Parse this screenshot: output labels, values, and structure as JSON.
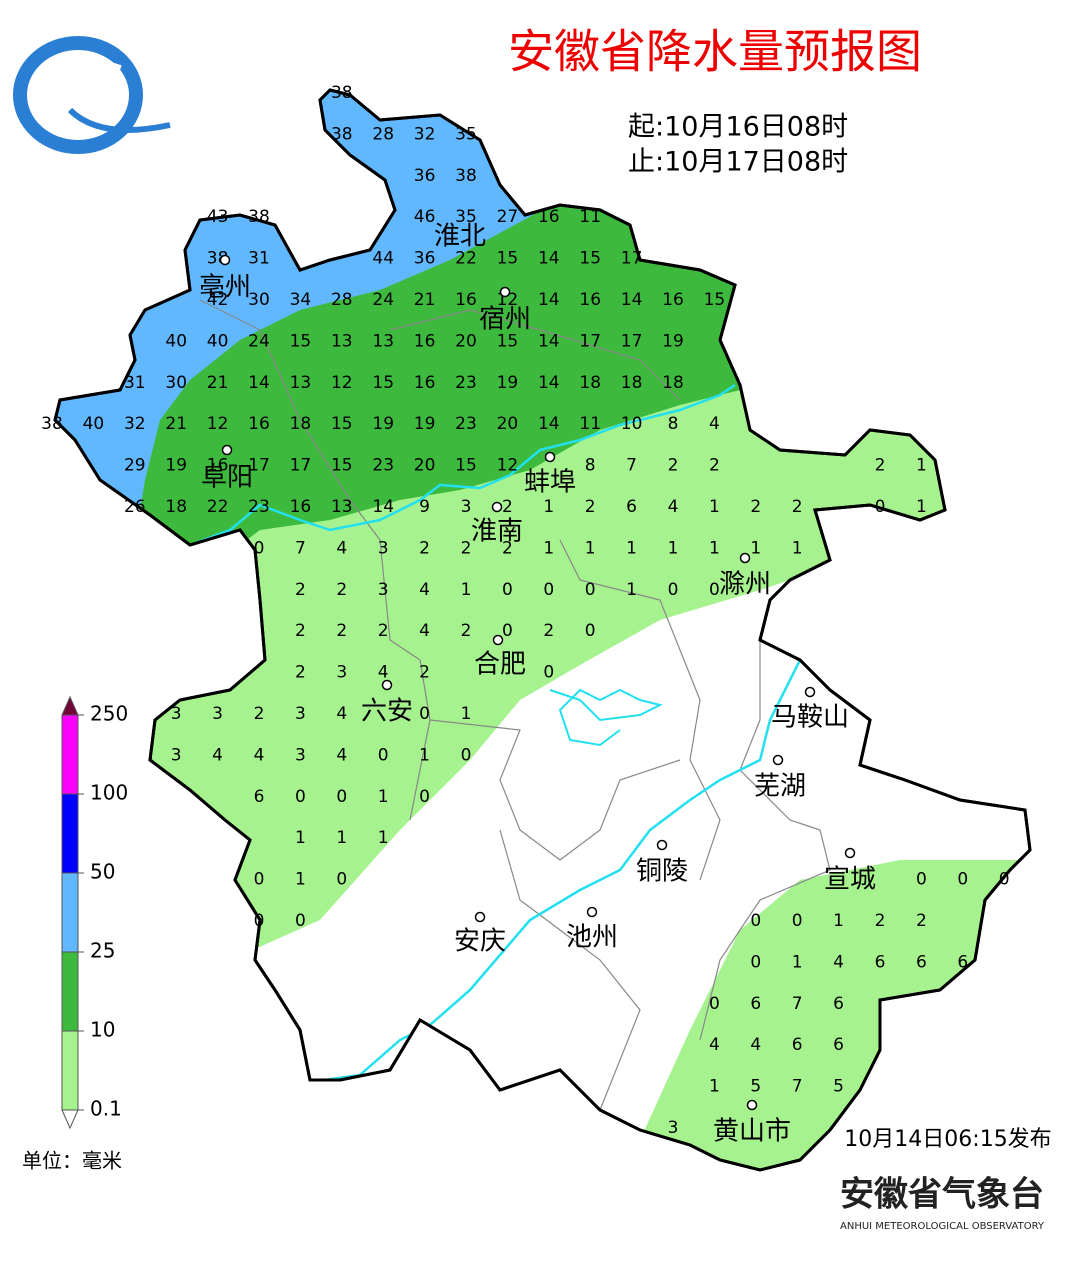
{
  "header": {
    "title": "安徽省降水量预报图",
    "start": "起:10月16日08时",
    "end": "止:10月17日08时"
  },
  "cities": [
    "淮北",
    "亳州",
    "宿州",
    "阜阳",
    "蚌埠",
    "淮南",
    "滁州",
    "合肥",
    "六安",
    "马鞍山",
    "芜湖",
    "铜陵",
    "宣城",
    "安庆",
    "池州",
    "黄山市"
  ],
  "stations": [
    [
      null,
      null,
      null,
      null,
      null,
      null,
      null,
      38
    ],
    [
      null,
      null,
      null,
      null,
      null,
      null,
      null,
      38,
      28,
      32,
      35
    ],
    [
      null,
      null,
      null,
      null,
      null,
      null,
      null,
      null,
      null,
      36,
      38
    ],
    [
      null,
      null,
      null,
      null,
      43,
      38,
      null,
      null,
      null,
      46,
      35,
      27,
      16,
      11
    ],
    [
      null,
      null,
      null,
      null,
      38,
      31,
      null,
      null,
      44,
      36,
      22,
      15,
      14,
      15,
      17
    ],
    [
      null,
      null,
      null,
      null,
      42,
      30,
      34,
      28,
      24,
      21,
      16,
      12,
      14,
      16,
      14,
      16,
      15
    ],
    [
      null,
      null,
      null,
      40,
      40,
      24,
      15,
      13,
      13,
      16,
      20,
      15,
      14,
      17,
      17,
      19
    ],
    [
      null,
      null,
      31,
      30,
      21,
      14,
      13,
      12,
      15,
      16,
      23,
      19,
      14,
      18,
      18,
      18
    ],
    [
      38,
      40,
      32,
      21,
      12,
      16,
      18,
      15,
      19,
      19,
      23,
      20,
      14,
      11,
      10,
      8,
      4
    ],
    [
      null,
      null,
      29,
      19,
      16,
      17,
      17,
      15,
      23,
      20,
      15,
      12,
      null,
      8,
      7,
      2,
      2,
      null,
      null,
      null,
      2,
      1
    ],
    [
      null,
      null,
      26,
      18,
      22,
      23,
      16,
      13,
      14,
      9,
      3,
      2,
      1,
      2,
      6,
      4,
      1,
      2,
      2,
      null,
      0,
      1
    ],
    [
      null,
      null,
      null,
      null,
      null,
      0,
      7,
      4,
      3,
      2,
      2,
      2,
      1,
      1,
      1,
      1,
      1,
      1,
      1
    ],
    [
      null,
      null,
      null,
      null,
      null,
      null,
      2,
      2,
      3,
      4,
      1,
      0,
      0,
      0,
      1,
      0,
      0
    ],
    [
      null,
      null,
      null,
      null,
      null,
      null,
      2,
      2,
      2,
      4,
      2,
      0,
      2,
      0
    ],
    [
      null,
      null,
      null,
      null,
      null,
      null,
      2,
      3,
      4,
      2,
      null,
      null,
      0
    ],
    [
      null,
      null,
      null,
      3,
      3,
      2,
      3,
      4,
      null,
      0,
      1
    ],
    [
      null,
      null,
      null,
      3,
      4,
      4,
      3,
      4,
      0,
      1,
      0
    ],
    [
      null,
      null,
      null,
      null,
      null,
      6,
      0,
      0,
      1,
      0
    ],
    [
      null,
      null,
      null,
      null,
      null,
      null,
      1,
      1,
      1
    ],
    [
      null,
      null,
      null,
      null,
      null,
      0,
      1,
      0,
      null,
      null,
      null,
      null,
      null,
      null,
      null,
      null,
      null,
      null,
      null,
      null,
      null,
      0,
      0,
      0
    ],
    [
      null,
      null,
      null,
      null,
      null,
      0,
      0,
      null,
      null,
      null,
      null,
      null,
      null,
      null,
      null,
      null,
      null,
      0,
      0,
      1,
      2,
      2
    ],
    [
      null,
      null,
      null,
      null,
      null,
      null,
      null,
      null,
      null,
      null,
      null,
      null,
      null,
      null,
      null,
      null,
      null,
      0,
      1,
      4,
      6,
      6,
      6
    ],
    [
      null,
      null,
      null,
      null,
      null,
      null,
      null,
      null,
      null,
      null,
      null,
      null,
      null,
      null,
      null,
      null,
      0,
      6,
      7,
      6
    ],
    [
      null,
      null,
      null,
      null,
      null,
      null,
      null,
      null,
      null,
      null,
      null,
      null,
      null,
      null,
      null,
      null,
      4,
      4,
      6,
      6
    ],
    [
      null,
      null,
      null,
      null,
      null,
      null,
      null,
      null,
      null,
      null,
      null,
      null,
      null,
      null,
      null,
      null,
      1,
      5,
      7,
      5
    ],
    [
      null,
      null,
      null,
      null,
      null,
      null,
      null,
      null,
      null,
      null,
      null,
      null,
      null,
      null,
      null,
      3
    ]
  ],
  "legend": {
    "bounds": [
      0.1,
      10,
      25,
      50,
      100,
      250
    ],
    "colors": [
      "#a6f28f",
      "#3dba3d",
      "#61b8ff",
      "#0000ff",
      "#fa00fa",
      "#720438"
    ],
    "unit": "单位：毫米"
  },
  "footer": {
    "issued": "10月14日06:15发布",
    "org": "安徽省气象台",
    "org_en": "ANHUI METEOROLOGICAL OBSERVATORY"
  }
}
